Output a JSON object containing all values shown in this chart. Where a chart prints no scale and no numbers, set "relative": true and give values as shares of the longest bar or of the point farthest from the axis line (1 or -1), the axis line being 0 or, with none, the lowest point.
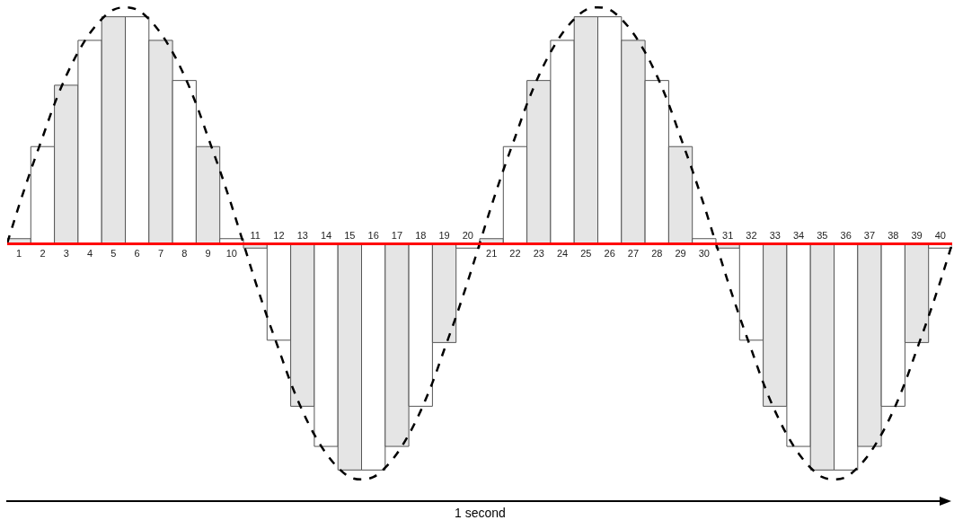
{
  "chart_data": {
    "type": "bar",
    "relative": true,
    "x": [
      1,
      2,
      3,
      4,
      5,
      6,
      7,
      8,
      9,
      10,
      11,
      12,
      13,
      14,
      15,
      16,
      17,
      18,
      19,
      20,
      21,
      22,
      23,
      24,
      25,
      26,
      27,
      28,
      29,
      30,
      31,
      32,
      33,
      34,
      35,
      36,
      37,
      38,
      39,
      40
    ],
    "xlim": [
      0.5,
      40.5
    ],
    "xticks": [
      1,
      2,
      3,
      4,
      5,
      6,
      7,
      8,
      9,
      10,
      21,
      22,
      23,
      24,
      25,
      26,
      27,
      28,
      29,
      30
    ],
    "x2lim": [
      0.5,
      40.5
    ],
    "x2ticks": [
      11,
      12,
      13,
      14,
      15,
      16,
      17,
      18,
      19,
      20,
      31,
      32,
      33,
      34,
      35,
      36,
      37,
      38,
      39,
      40
    ],
    "series": [
      {
        "colors": [
          "#e5e5e5",
          "#ffffff",
          "#e5e5e5",
          "#ffffff",
          "#e5e5e5",
          "#ffffff",
          "#e5e5e5",
          "#ffffff",
          "#e5e5e5",
          "#ffffff",
          "#e5e5e5",
          "#ffffff",
          "#e5e5e5",
          "#ffffff",
          "#e5e5e5",
          "#ffffff",
          "#e5e5e5",
          "#ffffff",
          "#e5e5e5",
          "#ffffff",
          "#e5e5e5",
          "#ffffff",
          "#e5e5e5",
          "#ffffff",
          "#e5e5e5",
          "#ffffff",
          "#e5e5e5",
          "#ffffff",
          "#e5e5e5",
          "#ffffff",
          "#e5e5e5",
          "#ffffff",
          "#e5e5e5",
          "#ffffff",
          "#e5e5e5",
          "#ffffff",
          "#e5e5e5",
          "#ffffff",
          "#e5e5e5",
          "#ffffff"
        ],
        "values": [
          0.02,
          0.41,
          0.67,
          0.86,
          0.96,
          0.96,
          0.86,
          0.69,
          0.41,
          0.02,
          -0.02,
          -0.41,
          -0.69,
          -0.86,
          -0.96,
          -0.96,
          -0.86,
          -0.69,
          -0.42,
          -0.02,
          0.02,
          0.41,
          0.69,
          0.86,
          0.96,
          0.96,
          0.86,
          0.69,
          0.41,
          0.02,
          -0.02,
          -0.41,
          -0.69,
          -0.86,
          -0.96,
          -0.96,
          -0.86,
          -0.69,
          -0.42,
          -0.02
        ]
      },
      {
        "type": "line",
        "color": "#000000",
        "line_style": "dashed",
        "x": [
          0.5,
          1,
          1.5,
          2,
          2.5,
          3,
          3.5,
          4,
          4.5,
          5,
          5.5,
          6,
          6.5,
          7,
          7.5,
          8,
          8.5,
          9,
          9.5,
          10,
          10.5,
          11,
          11.5,
          12,
          12.5,
          13,
          13.5,
          14,
          14.5,
          15,
          15.5,
          16,
          16.5,
          17,
          17.5,
          18,
          18.5,
          19,
          19.5,
          20,
          20.5,
          21,
          21.5,
          22,
          22.5,
          23,
          23.5,
          24,
          24.5,
          25,
          25.5,
          26,
          26.5,
          27,
          27.5,
          28,
          28.5,
          29,
          29.5,
          30,
          30.5,
          31,
          31.5,
          32,
          32.5,
          33,
          33.5,
          34,
          34.5,
          35,
          35.5,
          36,
          36.5,
          37,
          37.5,
          38,
          38.5,
          39,
          39.5,
          40,
          40.5
        ],
        "values": [
          0,
          0.16,
          0.31,
          0.45,
          0.59,
          0.71,
          0.81,
          0.89,
          0.95,
          0.99,
          1,
          0.99,
          0.95,
          0.89,
          0.81,
          0.71,
          0.59,
          0.45,
          0.31,
          0.16,
          0,
          -0.16,
          -0.31,
          -0.45,
          -0.59,
          -0.71,
          -0.81,
          -0.89,
          -0.95,
          -0.99,
          -1,
          -0.99,
          -0.95,
          -0.89,
          -0.81,
          -0.71,
          -0.59,
          -0.45,
          -0.31,
          -0.16,
          0,
          0.16,
          0.31,
          0.45,
          0.59,
          0.71,
          0.81,
          0.89,
          0.95,
          0.99,
          1,
          0.99,
          0.95,
          0.89,
          0.81,
          0.71,
          0.59,
          0.45,
          0.31,
          0.16,
          0,
          -0.16,
          -0.31,
          -0.45,
          -0.59,
          -0.71,
          -0.81,
          -0.89,
          -0.95,
          -0.99,
          -1,
          -0.99,
          -0.95,
          -0.89,
          -0.81,
          -0.71,
          -0.59,
          -0.45,
          -0.31,
          -0.16,
          0
        ]
      }
    ],
    "annotations": [
      "1 second"
    ]
  }
}
